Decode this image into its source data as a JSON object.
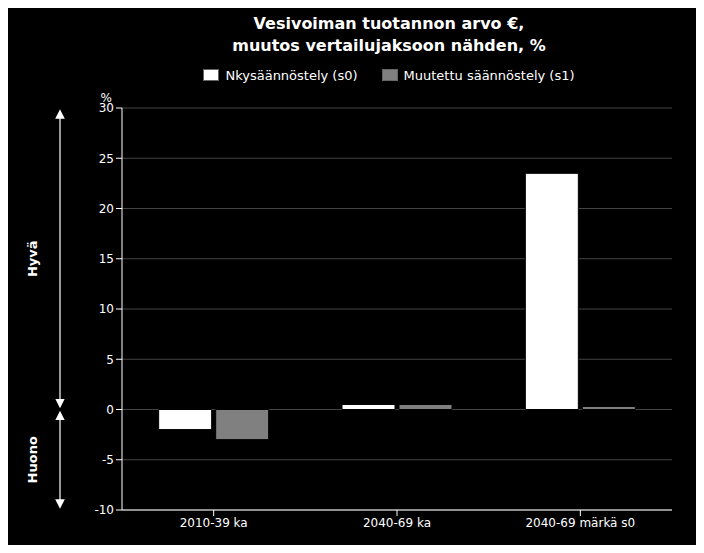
{
  "chart_data": {
    "type": "bar",
    "title": "Vesivoiman tuotannon arvo €,\nmuutos vertailujaksoon nähden, %",
    "categories": [
      "2010-39 ka",
      "2040-69 ka",
      "2040-69 märkä s0"
    ],
    "series": [
      {
        "name": "Nkysäännöstely (s0)",
        "color": "#ffffff",
        "values": [
          -2.0,
          0.5,
          23.5
        ]
      },
      {
        "name": "Muutettu säännöstely (s1)",
        "color": "#808080",
        "values": [
          -3.0,
          0.5,
          0.3
        ]
      }
    ],
    "ylabel": "%",
    "ylim": [
      -10,
      30
    ],
    "yticks": [
      -10,
      -5,
      0,
      5,
      10,
      15,
      20,
      25,
      30
    ],
    "grid": true,
    "legend": "top",
    "annotations": [
      {
        "text": "Hyvä",
        "from": 0,
        "to": 30
      },
      {
        "text": "Huono",
        "from": -10,
        "to": 0
      }
    ]
  }
}
